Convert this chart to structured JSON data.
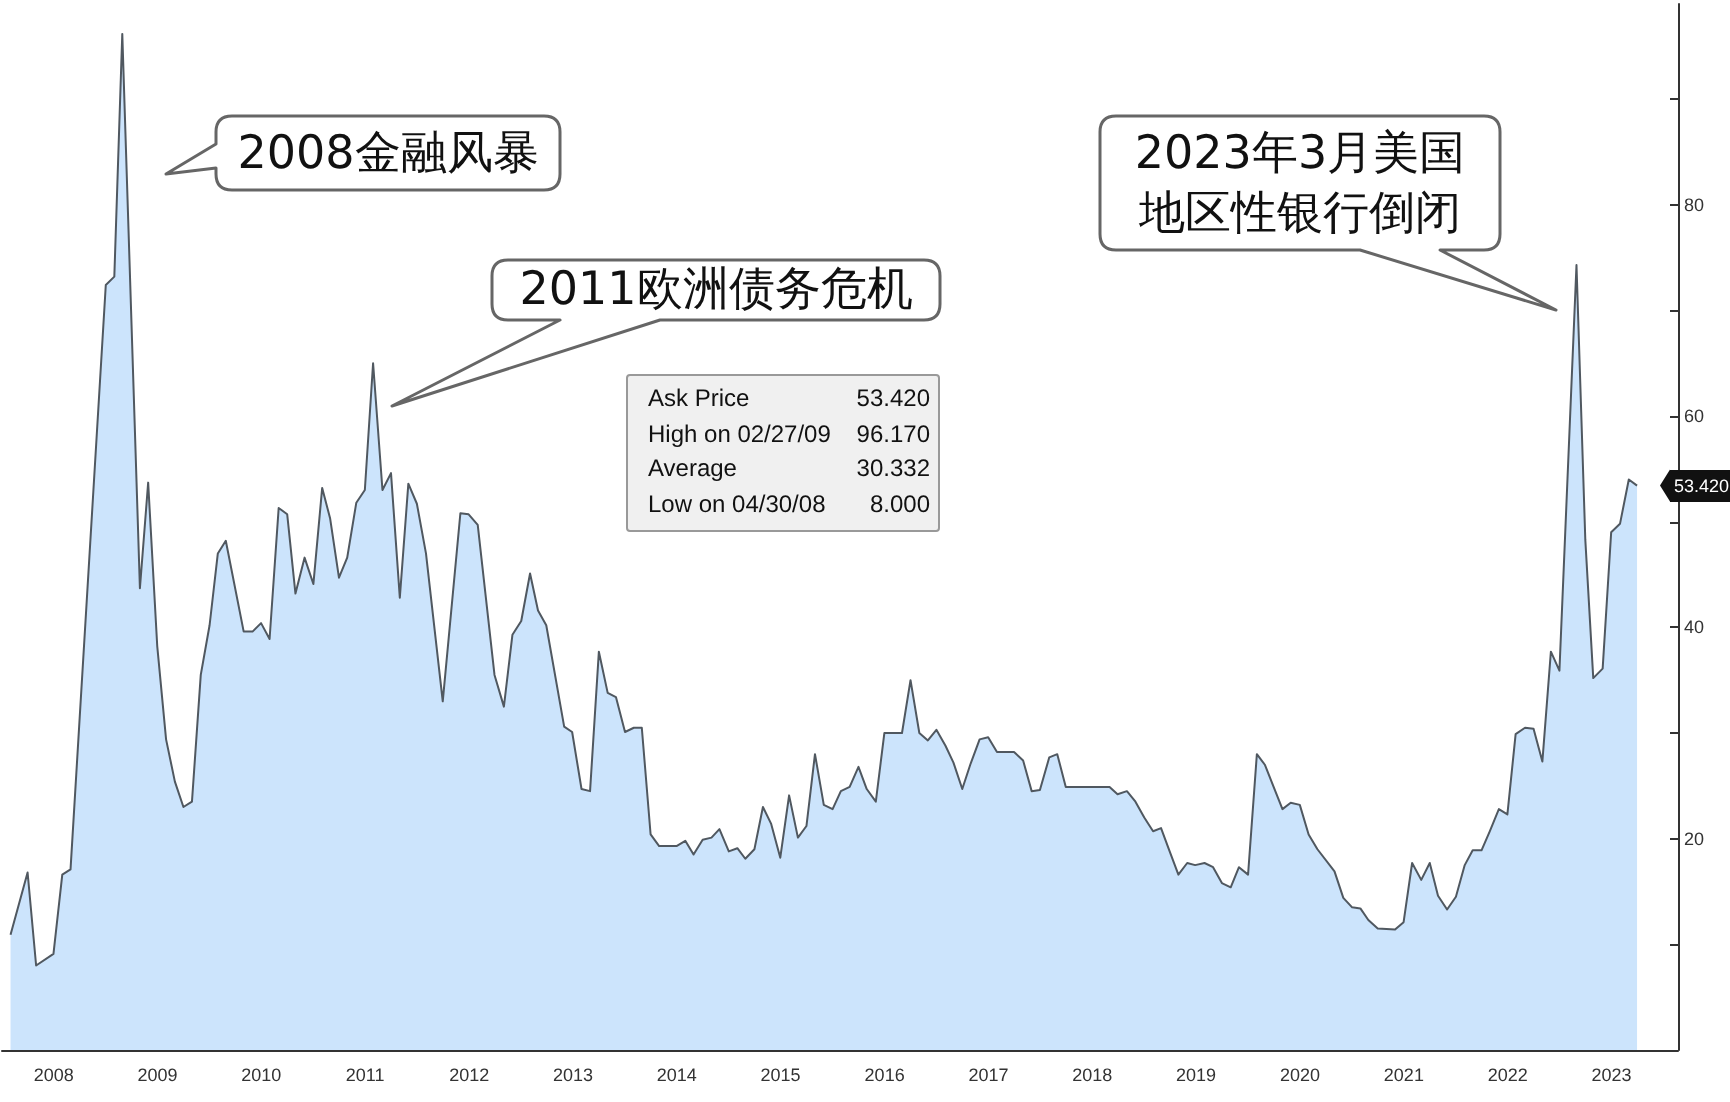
{
  "chart_data": {
    "type": "area",
    "color": "#cce4fc",
    "x": [
      "2008-01-31",
      "2008-03-31",
      "2008-04-30",
      "2008-06-30",
      "2008-07-31",
      "2008-08-29",
      "2008-12-31",
      "2009-01-30",
      "2009-02-27",
      "2009-04-30",
      "2009-05-29",
      "2009-06-30",
      "2009-07-31",
      "2009-08-31",
      "2009-09-30",
      "2009-10-30",
      "2009-11-30",
      "2009-12-31",
      "2010-01-29",
      "2010-02-26",
      "2010-04-30",
      "2010-05-31",
      "2010-06-30",
      "2010-07-30",
      "2010-08-31",
      "2010-09-30",
      "2010-10-29",
      "2010-11-30",
      "2010-12-31",
      "2011-01-31",
      "2011-02-28",
      "2011-03-31",
      "2011-04-29",
      "2011-05-31",
      "2011-06-30",
      "2011-07-29",
      "2011-08-31",
      "2011-09-30",
      "2011-10-31",
      "2011-11-30",
      "2011-12-30",
      "2012-01-31",
      "2012-03-30",
      "2012-05-31",
      "2012-06-29",
      "2012-07-31",
      "2012-09-28",
      "2012-10-31",
      "2012-11-30",
      "2012-12-31",
      "2013-01-31",
      "2013-02-28",
      "2013-03-29",
      "2013-05-31",
      "2013-06-28",
      "2013-07-31",
      "2013-08-30",
      "2013-09-30",
      "2013-10-31",
      "2013-11-29",
      "2013-12-31",
      "2014-01-31",
      "2014-02-28",
      "2014-03-31",
      "2014-04-30",
      "2014-06-30",
      "2014-07-31",
      "2014-08-29",
      "2014-09-30",
      "2014-10-31",
      "2014-11-28",
      "2014-12-31",
      "2015-01-30",
      "2015-02-27",
      "2015-03-31",
      "2015-04-30",
      "2015-05-29",
      "2015-06-30",
      "2015-07-31",
      "2015-08-31",
      "2015-09-30",
      "2015-10-30",
      "2015-11-30",
      "2015-12-31",
      "2016-01-29",
      "2016-02-29",
      "2016-03-31",
      "2016-04-29",
      "2016-05-31",
      "2016-06-30",
      "2016-08-31",
      "2016-09-30",
      "2016-10-31",
      "2016-11-30",
      "2016-12-30",
      "2017-01-31",
      "2017-02-28",
      "2017-03-31",
      "2017-04-28",
      "2017-05-31",
      "2017-06-30",
      "2017-07-31",
      "2017-09-29",
      "2017-10-31",
      "2017-11-30",
      "2017-12-29",
      "2018-01-31",
      "2018-02-28",
      "2018-03-30",
      "2018-08-31",
      "2018-09-28",
      "2018-10-31",
      "2018-11-30",
      "2018-12-31",
      "2019-01-31",
      "2019-02-28",
      "2019-03-29",
      "2019-04-30",
      "2019-05-31",
      "2019-06-28",
      "2019-07-31",
      "2019-08-30",
      "2019-09-30",
      "2019-10-31",
      "2019-11-29",
      "2019-12-31",
      "2020-01-31",
      "2020-02-28",
      "2020-04-30",
      "2020-05-29",
      "2020-06-30",
      "2020-07-31",
      "2020-08-31",
      "2020-10-30",
      "2020-11-30",
      "2020-12-31",
      "2021-01-29",
      "2021-02-26",
      "2021-03-31",
      "2021-05-31",
      "2021-06-30",
      "2021-07-30",
      "2021-08-31",
      "2021-09-30",
      "2021-10-29",
      "2021-11-30",
      "2021-12-31",
      "2022-01-31",
      "2022-02-28",
      "2022-03-31",
      "2022-04-29",
      "2022-05-31",
      "2022-06-30",
      "2022-07-29",
      "2022-08-31",
      "2022-09-30",
      "2022-10-31",
      "2022-11-30",
      "2022-12-30",
      "2023-02-28",
      "2023-03-31",
      "2023-04-28",
      "2023-05-31",
      "2023-06-30",
      "2023-07-31",
      "2023-08-31",
      "2023-09-29"
    ],
    "values": [
      10.9,
      16.8,
      8.0,
      9.1,
      16.6,
      17.1,
      72.4,
      73.2,
      96.17,
      43.7,
      53.7,
      38.2,
      29.4,
      25.4,
      23.0,
      23.5,
      35.5,
      40.2,
      47.0,
      48.2,
      39.6,
      39.6,
      40.4,
      38.9,
      51.3,
      50.7,
      43.2,
      46.6,
      44.1,
      53.2,
      50.3,
      44.7,
      46.6,
      51.8,
      53.0,
      65.0,
      53.0,
      54.6,
      42.8,
      53.6,
      51.7,
      47.0,
      33.0,
      50.8,
      50.7,
      49.7,
      35.5,
      32.5,
      39.3,
      40.6,
      45.1,
      41.6,
      40.2,
      30.6,
      30.1,
      24.7,
      24.5,
      37.7,
      33.8,
      33.4,
      30.1,
      30.5,
      30.5,
      20.4,
      19.3,
      19.3,
      19.8,
      18.5,
      19.9,
      20.1,
      20.9,
      18.8,
      19.1,
      18.1,
      19.0,
      23.0,
      21.4,
      18.2,
      24.1,
      20.1,
      21.2,
      28.0,
      23.2,
      22.8,
      24.5,
      24.9,
      26.8,
      24.7,
      23.5,
      30.0,
      30.0,
      35.0,
      30.0,
      29.3,
      30.3,
      28.8,
      27.2,
      24.7,
      27.0,
      29.4,
      29.6,
      28.2,
      28.2,
      27.4,
      24.5,
      24.6,
      27.7,
      28.0,
      24.9,
      24.9,
      24.2,
      24.5,
      23.5,
      22.0,
      20.7,
      21.0,
      18.9,
      16.6,
      17.7,
      17.5,
      17.7,
      17.3,
      15.8,
      15.4,
      17.3,
      16.6,
      28.0,
      27.0,
      22.8,
      23.4,
      23.2,
      20.4,
      19.0,
      16.9,
      14.4,
      13.5,
      13.4,
      12.3,
      11.5,
      11.4,
      12.1,
      17.7,
      16.1,
      17.7,
      14.6,
      13.3,
      14.5,
      17.5,
      18.9,
      18.9,
      20.7,
      22.8,
      22.3,
      29.9,
      30.5,
      30.4,
      27.3,
      37.7,
      35.9,
      74.3,
      48.3,
      35.2,
      36.1,
      49.0,
      49.8,
      54.0,
      53.42
    ],
    "xlim": [
      "2008-01-01",
      "2024-02-20"
    ],
    "xticks": [
      {
        "value": "2008-07-01",
        "label": "2008"
      },
      {
        "value": "2009-07-01",
        "label": "2009"
      },
      {
        "value": "2010-07-01",
        "label": "2010"
      },
      {
        "value": "2011-07-01",
        "label": "2011"
      },
      {
        "value": "2012-07-01",
        "label": "2012"
      },
      {
        "value": "2013-07-01",
        "label": "2013"
      },
      {
        "value": "2014-07-01",
        "label": "2014"
      },
      {
        "value": "2015-07-01",
        "label": "2015"
      },
      {
        "value": "2016-07-01",
        "label": "2016"
      },
      {
        "value": "2017-07-01",
        "label": "2017"
      },
      {
        "value": "2018-07-01",
        "label": "2018"
      },
      {
        "value": "2019-07-01",
        "label": "2019"
      },
      {
        "value": "2020-07-01",
        "label": "2020"
      },
      {
        "value": "2021-07-01",
        "label": "2021"
      },
      {
        "value": "2022-07-01",
        "label": "2022"
      },
      {
        "value": "2023-07-01",
        "label": "2023"
      }
    ],
    "ylim": [
      0,
      99
    ],
    "yticks": [
      {
        "value": 0,
        "label": null
      },
      {
        "value": 10,
        "label": null
      },
      20,
      {
        "value": 30,
        "label": null
      },
      40,
      {
        "value": 50,
        "label": null
      },
      60,
      {
        "value": 70,
        "label": null
      },
      80,
      {
        "value": 90,
        "label": null
      }
    ],
    "grid": false,
    "marker": "none",
    "line_style": "solid",
    "annotations": [
      "2008金融风暴",
      "2011欧洲债务危机",
      "2023年3月美国地区性银行倒闭",
      {
        "text": "53.420",
        "x": "2023-09-29",
        "y": 53.42
      },
      "Ask Price",
      "53.420",
      "High on 02/27/09",
      "96.170",
      "Average",
      "30.332",
      "Low on 04/30/08",
      "8.000"
    ]
  }
}
